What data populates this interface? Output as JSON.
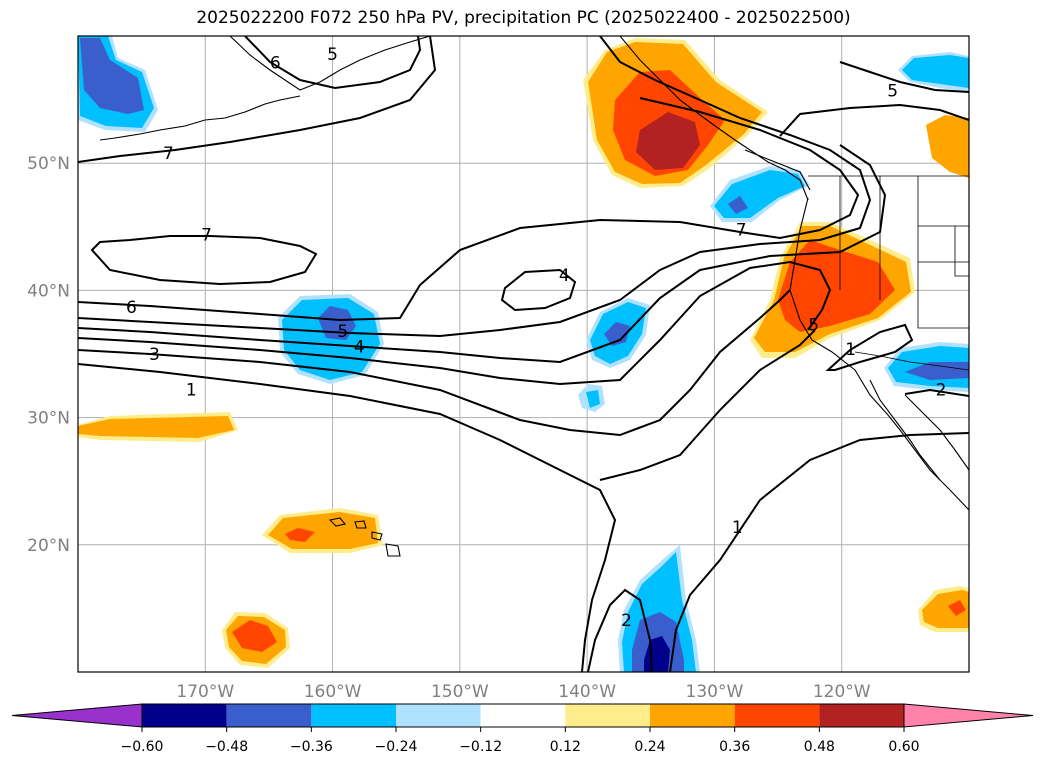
{
  "title": "2025022200 F072 250 hPa PV, precipitation PC (2025022400 - 2025022500)",
  "map": {
    "lon_range": [
      -180,
      -110
    ],
    "lat_range": [
      10,
      60
    ],
    "lon_ticks": [
      {
        "lon": -170,
        "label": "170°W"
      },
      {
        "lon": -160,
        "label": "160°W"
      },
      {
        "lon": -150,
        "label": "150°W"
      },
      {
        "lon": -140,
        "label": "140°W"
      },
      {
        "lon": -130,
        "label": "130°W"
      },
      {
        "lon": -120,
        "label": "120°W"
      }
    ],
    "lat_ticks": [
      {
        "lat": 20,
        "label": "20°N"
      },
      {
        "lat": 30,
        "label": "30°N"
      },
      {
        "lat": 40,
        "label": "40°N"
      },
      {
        "lat": 50,
        "label": "50°N"
      }
    ],
    "grid": true,
    "contour_labels": [
      {
        "text": "6",
        "lon": -175.8,
        "lat": 38.7
      },
      {
        "text": "3",
        "lon": -174.0,
        "lat": 35.0
      },
      {
        "text": "1",
        "lon": -171.1,
        "lat": 32.2
      },
      {
        "text": "7",
        "lon": -169.9,
        "lat": 44.4
      },
      {
        "text": "7",
        "lon": -172.9,
        "lat": 50.8
      },
      {
        "text": "6",
        "lon": -164.5,
        "lat": 57.9
      },
      {
        "text": "5",
        "lon": -160.0,
        "lat": 58.6
      },
      {
        "text": "5",
        "lon": -159.2,
        "lat": 36.8
      },
      {
        "text": "4",
        "lon": -157.9,
        "lat": 35.6
      },
      {
        "text": "4",
        "lon": -141.8,
        "lat": 41.2
      },
      {
        "text": "7",
        "lon": -127.9,
        "lat": 44.8
      },
      {
        "text": "5",
        "lon": -116.0,
        "lat": 55.7
      },
      {
        "text": "5",
        "lon": -122.2,
        "lat": 37.3
      },
      {
        "text": "1",
        "lon": -119.3,
        "lat": 35.4
      },
      {
        "text": "2",
        "lon": -112.2,
        "lat": 32.2
      },
      {
        "text": "1",
        "lon": -128.2,
        "lat": 21.4
      },
      {
        "text": "2",
        "lon": -136.9,
        "lat": 14.1
      }
    ]
  },
  "colorbar": {
    "levels": [
      "-0.60",
      "-0.48",
      "-0.36",
      "-0.24",
      "-0.12",
      "0.12",
      "0.24",
      "0.36",
      "0.48",
      "0.60"
    ],
    "colors": [
      "#9932cc",
      "#00008b",
      "#3a5fcd",
      "#00bfff",
      "#b0e2ff",
      "#ffffff",
      "#ffec8b",
      "#ffa500",
      "#ff4500",
      "#b22222",
      "#ff82ab"
    ]
  }
}
